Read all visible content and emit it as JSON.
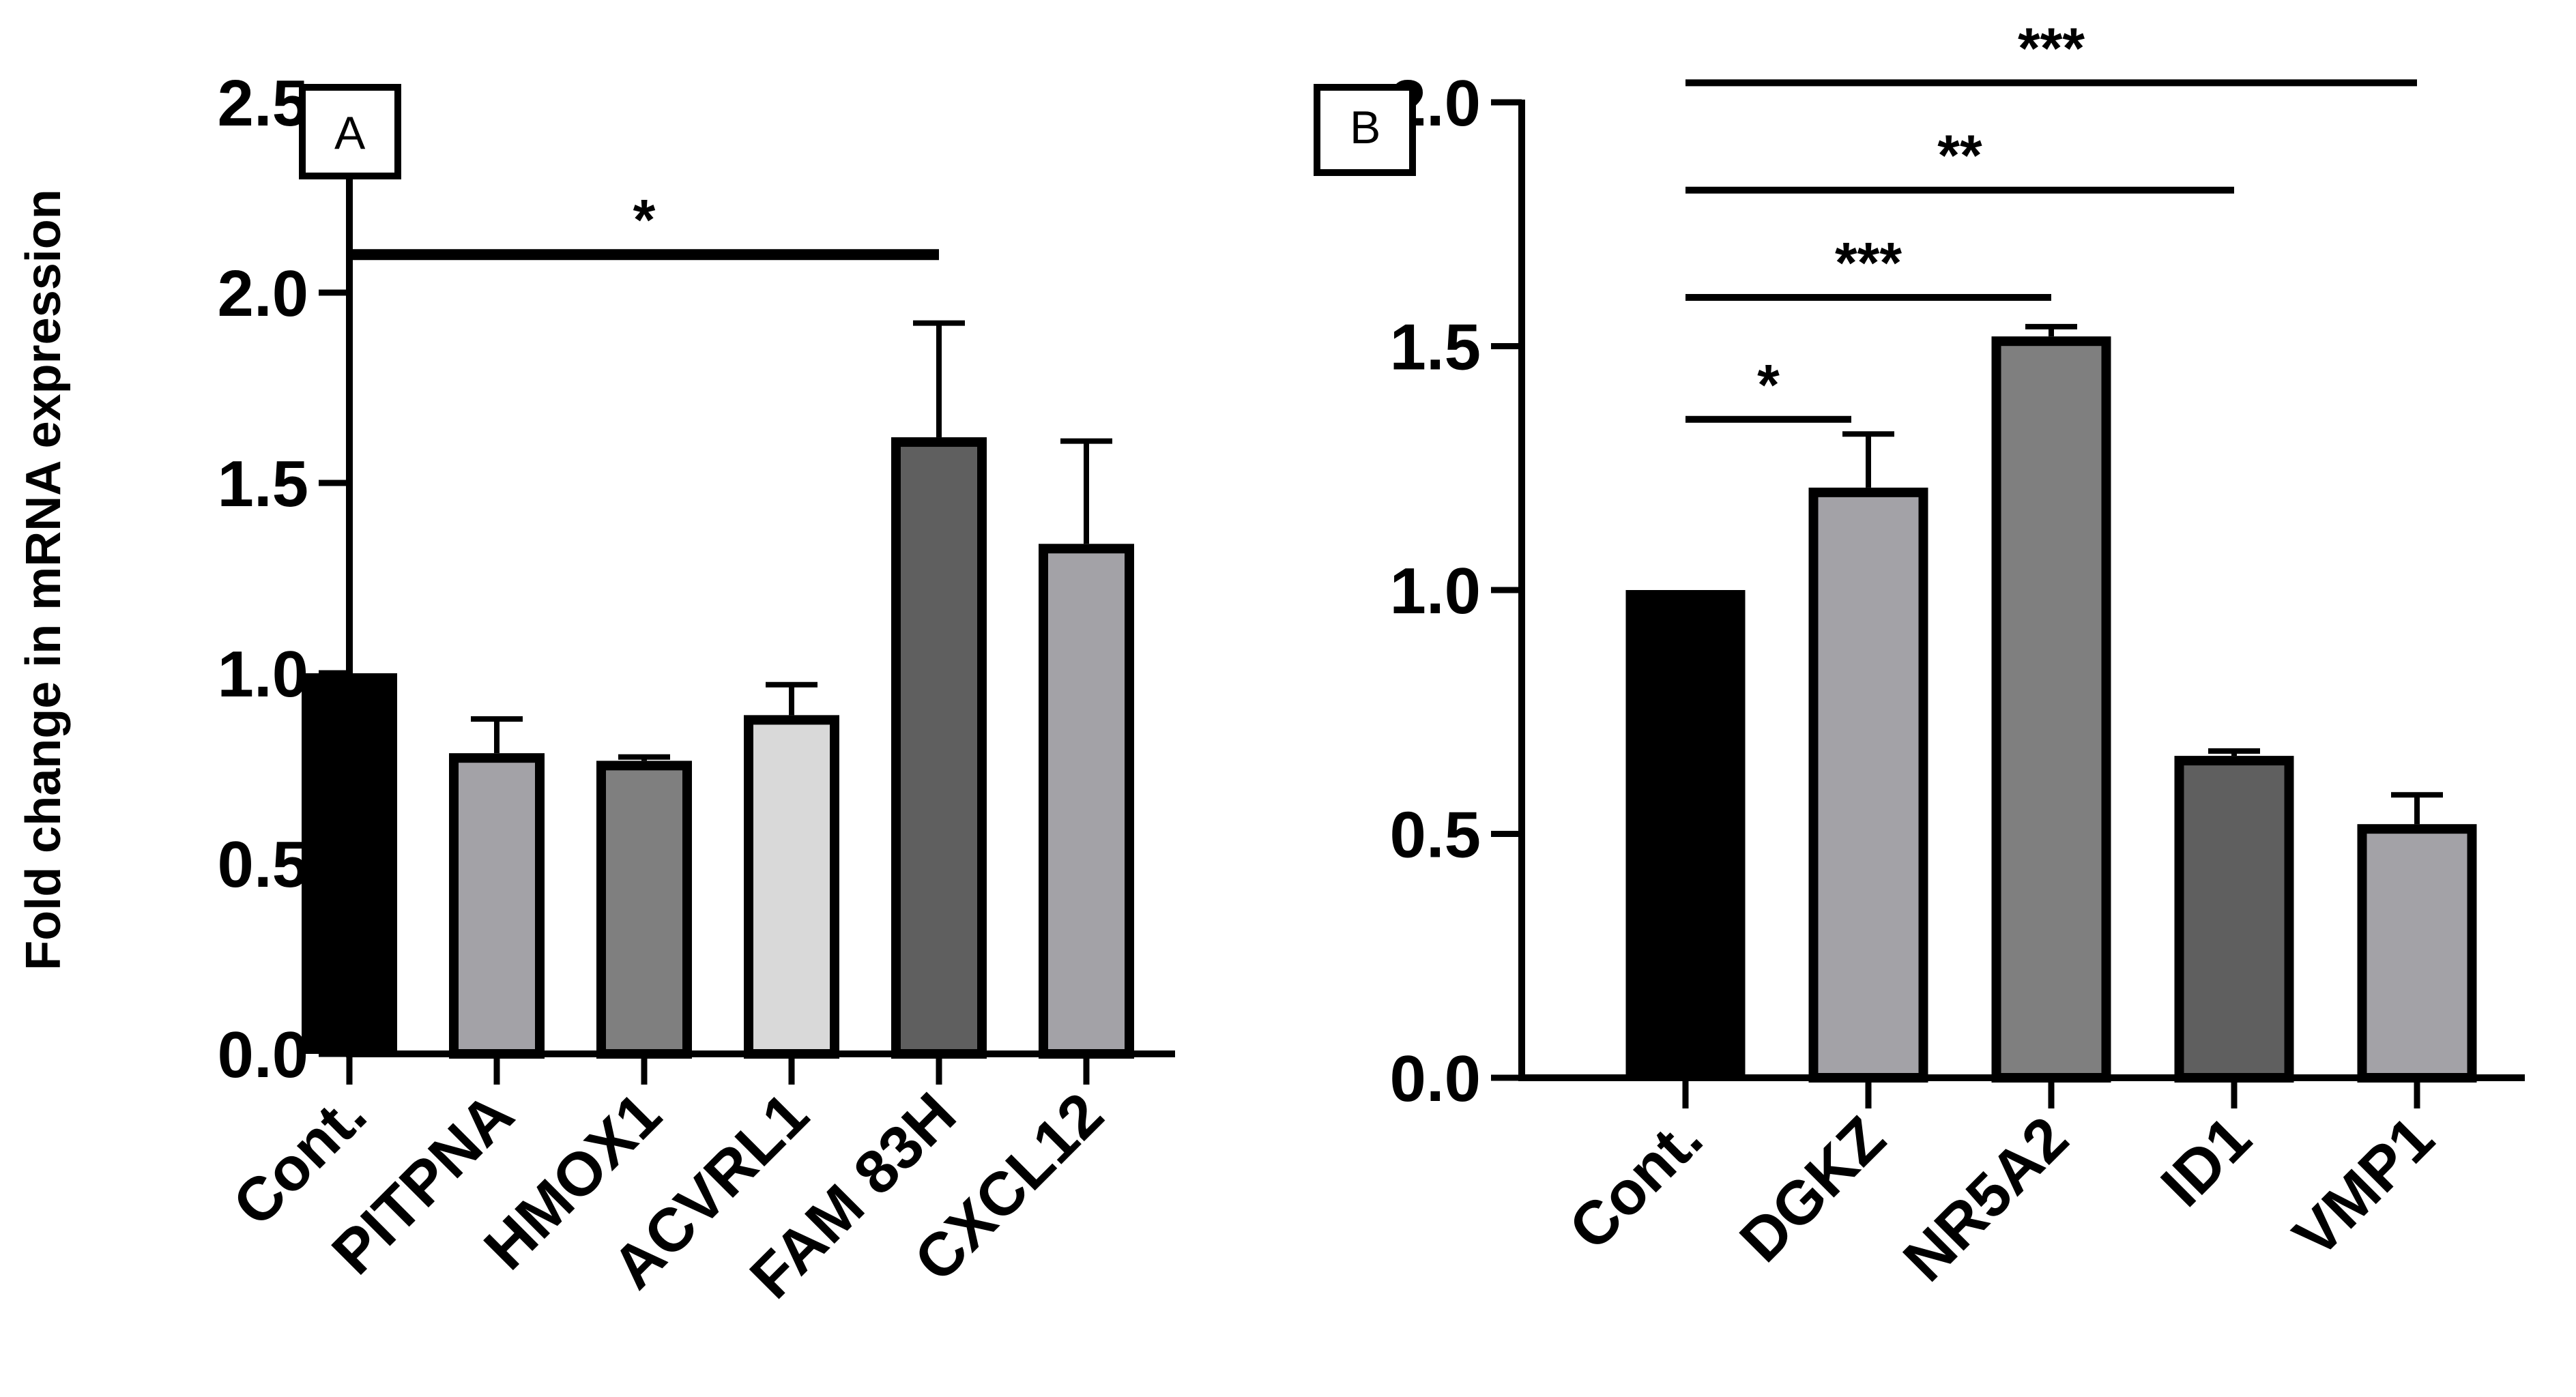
{
  "chart_data": [
    {
      "type": "bar",
      "panel_label": "A",
      "ylabel": "Fold change in mRNA expression",
      "xlabel": "",
      "ylim": [
        0,
        2.5
      ],
      "yticks": [
        "0.0",
        "0.5",
        "1.0",
        "1.5",
        "2.0",
        "2.5"
      ],
      "categories": [
        "Cont.",
        "PITPNA",
        "HMOX1",
        "ACVRL1",
        "FAM 83H",
        "CXCL12"
      ],
      "values": [
        1.0,
        0.79,
        0.77,
        0.89,
        1.62,
        1.34
      ],
      "errors": [
        0,
        0.09,
        0.01,
        0.08,
        0.3,
        0.27
      ],
      "colors": [
        "#000000",
        "#a3a2a7",
        "#7f7f7f",
        "#d9d9d9",
        "#5f5f5f",
        "#a3a2a7"
      ],
      "significance": [
        {
          "from": 0,
          "to": 4,
          "label": "*",
          "y": 2.1
        }
      ]
    },
    {
      "type": "bar",
      "panel_label": "B",
      "ylabel": "",
      "xlabel": "",
      "ylim": [
        0,
        2.0
      ],
      "yticks": [
        "0.0",
        "0.5",
        "1.0",
        "1.5",
        "2.0"
      ],
      "categories": [
        "Cont.",
        "DGKZ",
        "NR5A2",
        "ID1",
        "VMP1"
      ],
      "values": [
        1.0,
        1.21,
        1.52,
        0.66,
        0.52
      ],
      "errors": [
        0,
        0.11,
        0.02,
        0.01,
        0.06
      ],
      "colors": [
        "#000000",
        "#a3a2a7",
        "#7f7f7f",
        "#5f5f5f",
        "#a3a2a7"
      ],
      "significance": [
        {
          "from": 0,
          "to": 1,
          "label": "*",
          "y": 1.35
        },
        {
          "from": 0,
          "to": 2,
          "label": "***",
          "y": 1.6
        },
        {
          "from": 0,
          "to": 3,
          "label": "**",
          "y": 1.82
        },
        {
          "from": 0,
          "to": 4,
          "label": "***",
          "y": 2.04
        }
      ]
    }
  ]
}
